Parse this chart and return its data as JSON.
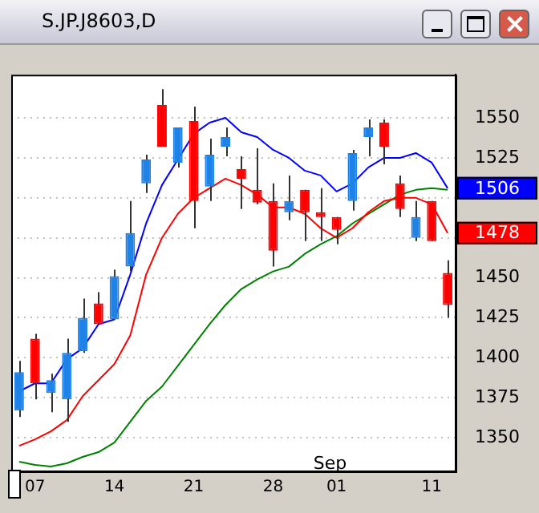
{
  "chart_data": {
    "type": "candlestick",
    "title": "S.JP.J8603,D",
    "categories": [
      null,
      "07",
      null,
      null,
      null,
      null,
      "14",
      null,
      null,
      null,
      null,
      "21",
      null,
      null,
      null,
      null,
      "28",
      null,
      null,
      null,
      "01",
      null,
      null,
      null,
      null,
      null,
      "11",
      null
    ],
    "ohlc": [
      [
        1367,
        1398,
        1363,
        1391
      ],
      [
        1412,
        1415,
        1374,
        1384
      ],
      [
        1378,
        1390,
        1366,
        1386
      ],
      [
        1374,
        1412,
        1360,
        1403
      ],
      [
        1404,
        1437,
        1403,
        1425
      ],
      [
        1434,
        1441,
        1421,
        1421
      ],
      [
        1424,
        1455,
        1424,
        1451
      ],
      [
        1457,
        1498,
        1454,
        1478
      ],
      [
        1509,
        1527,
        1503,
        1524
      ],
      [
        1558,
        1568,
        1532,
        1532
      ],
      [
        1522,
        1544,
        1519,
        1544
      ],
      [
        1548,
        1557,
        1481,
        1498
      ],
      [
        1507,
        1537,
        1498,
        1527
      ],
      [
        1532,
        1544,
        1526,
        1538
      ],
      [
        1518,
        1526,
        1493,
        1512
      ],
      [
        1505,
        1531,
        1496,
        1497
      ],
      [
        1498,
        1509,
        1457,
        1467
      ],
      [
        1491,
        1514,
        1486,
        1498
      ],
      [
        1505,
        1505,
        1473,
        1491
      ],
      [
        1491,
        1506,
        1473,
        1488
      ],
      [
        1488,
        1488,
        1471,
        1480
      ],
      [
        1498,
        1530,
        1492,
        1528
      ],
      [
        1538,
        1549,
        1526,
        1544
      ],
      [
        1547,
        1549,
        1521,
        1532
      ],
      [
        1509,
        1514,
        1488,
        1493
      ],
      [
        1475,
        1498,
        1473,
        1488
      ],
      [
        1498,
        1498,
        1473,
        1473
      ],
      [
        1453,
        1461,
        1425,
        1433
      ]
    ],
    "colors": [
      "#1e82e6",
      "#ff0000",
      "#1e82e6",
      "#1e82e6",
      "#1e82e6",
      "#ff0000",
      "#1e82e6",
      "#1e82e6",
      "#1e82e6",
      "#ff0000",
      "#1e82e6",
      "#ff0000",
      "#1e82e6",
      "#1e82e6",
      "#ff0000",
      "#ff0000",
      "#ff0000",
      "#1e82e6",
      "#ff0000",
      "#ff0000",
      "#ff0000",
      "#1e82e6",
      "#1e82e6",
      "#ff0000",
      "#ff0000",
      "#1e82e6",
      "#ff0000",
      "#ff0000"
    ],
    "series": [
      {
        "type": "line",
        "color": "#0000ff",
        "values": [
          1379,
          1384,
          1384,
          1399,
          1406,
          1421,
          1424,
          1452,
          1484,
          1508,
          1524,
          1540,
          1547,
          1550,
          1541,
          1538,
          1530,
          1525,
          1517,
          1514,
          1504,
          1509,
          1519,
          1525,
          1525,
          1528,
          1522,
          1506
        ]
      },
      {
        "type": "line",
        "color": "#ff0000",
        "values": [
          1345,
          1349,
          1354,
          1361,
          1376,
          1386,
          1396,
          1414,
          1452,
          1475,
          1490,
          1500,
          1506,
          1512,
          1508,
          1502,
          1494,
          1494,
          1490,
          1481,
          1475,
          1481,
          1491,
          1498,
          1500,
          1500,
          1496,
          1478
        ]
      },
      {
        "type": "line",
        "color": "#008000",
        "values": [
          1335,
          1333,
          1332,
          1334,
          1338,
          1341,
          1347,
          1360,
          1373,
          1382,
          1395,
          1408,
          1421,
          1433,
          1443,
          1449,
          1454,
          1457,
          1465,
          1471,
          1476,
          1484,
          1490,
          1496,
          1502,
          1505,
          1506,
          1505
        ]
      }
    ],
    "ylim": [
      1329,
      1577
    ],
    "yticks": [
      1350,
      1375,
      1400,
      1425,
      1450,
      {
        "value": 1475,
        "label": null
      },
      {
        "value": 1500,
        "label": null
      },
      1525,
      1550
    ],
    "y2lim": [
      1329,
      1577
    ],
    "y2ticks": [
      1506,
      1478
    ],
    "grid": "y",
    "legend": false,
    "marker": "none",
    "annotations": [
      "Sep"
    ]
  }
}
